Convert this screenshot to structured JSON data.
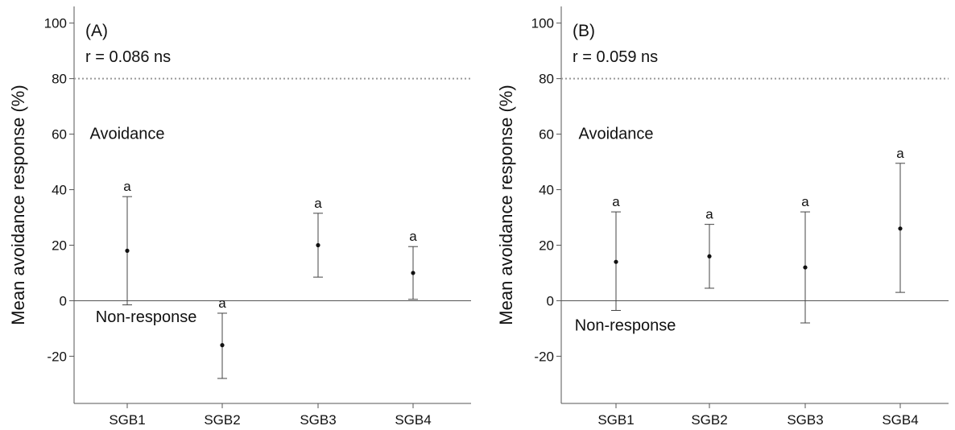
{
  "chart_data": [
    {
      "type": "scatter",
      "panel_label": "(A)",
      "stat_text": "r = 0.086 ns",
      "ylabel": "Mean avoidance response (%)",
      "xlabel": "",
      "categories": [
        "SGB1",
        "SGB2",
        "SGB3",
        "SGB4"
      ],
      "means": [
        18,
        -16,
        20,
        10
      ],
      "error_lower": [
        -1.5,
        -28,
        8.5,
        0.5
      ],
      "error_upper": [
        37.5,
        -4.5,
        31.5,
        19.5
      ],
      "significance_letters": [
        "a",
        "a",
        "a",
        "a"
      ],
      "ylim": [
        -37,
        106
      ],
      "yticks": [
        -20,
        0,
        20,
        40,
        60,
        80,
        100
      ],
      "threshold_line": 80,
      "zero_line": 0,
      "region_labels": [
        {
          "text": "Avoidance",
          "x": 1.0,
          "y": 60
        },
        {
          "text": "Non-response",
          "x": 1.2,
          "y": -6
        }
      ],
      "grid": false,
      "legend": "none"
    },
    {
      "type": "scatter",
      "panel_label": "(B)",
      "stat_text": "r = 0.059 ns",
      "ylabel": "Mean avoidance response (%)",
      "xlabel": "",
      "categories": [
        "SGB1",
        "SGB2",
        "SGB3",
        "SGB4"
      ],
      "means": [
        14,
        16,
        12,
        26
      ],
      "error_lower": [
        -3.5,
        4.5,
        -8,
        3
      ],
      "error_upper": [
        32,
        27.5,
        32,
        49.5
      ],
      "significance_letters": [
        "a",
        "a",
        "a",
        "a"
      ],
      "ylim": [
        -37,
        106
      ],
      "yticks": [
        -20,
        0,
        20,
        40,
        60,
        80,
        100
      ],
      "threshold_line": 80,
      "zero_line": 0,
      "region_labels": [
        {
          "text": "Avoidance",
          "x": 1.0,
          "y": 60
        },
        {
          "text": "Non-response",
          "x": 1.1,
          "y": -9
        }
      ],
      "grid": false,
      "legend": "none"
    }
  ],
  "colors": {
    "axis": "#555555",
    "marker": "#111111",
    "error_bar": "#444444",
    "threshold": "#999999",
    "text": "#111111"
  }
}
